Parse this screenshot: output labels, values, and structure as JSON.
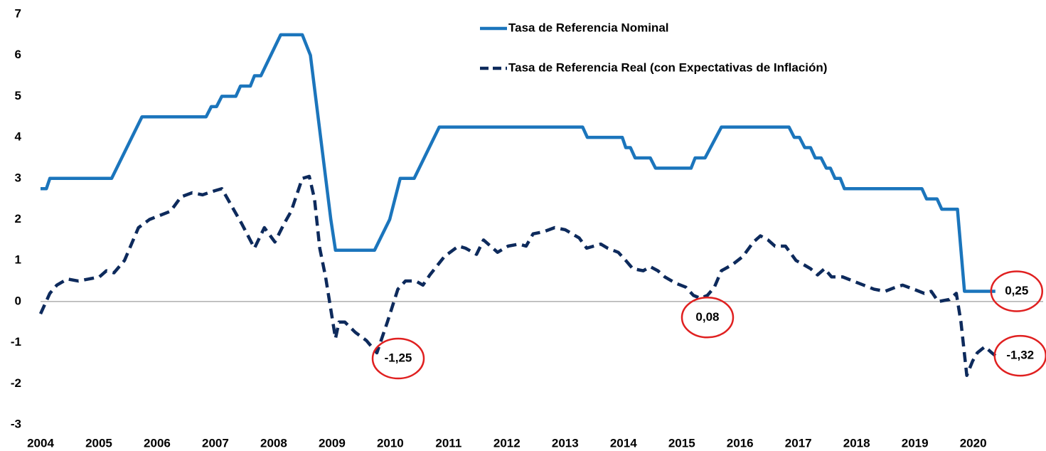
{
  "chart_data": {
    "type": "line",
    "xlim": [
      2004,
      2021.2
    ],
    "xticks": [
      2004,
      2005,
      2006,
      2007,
      2008,
      2009,
      2010,
      2011,
      2012,
      2013,
      2014,
      2015,
      2016,
      2017,
      2018,
      2019,
      2020
    ],
    "ylim": [
      -3,
      7
    ],
    "yticks": [
      -3,
      -2,
      -1,
      0,
      1,
      2,
      3,
      4,
      5,
      6,
      7
    ],
    "grid": false,
    "legend": "top-right",
    "series": [
      {
        "name": "Tasa de Referencia Nominal",
        "color": "#1b75bc",
        "dash": false,
        "x": [
          2004.0,
          2004.1,
          2004.16,
          2005.22,
          2005.74,
          2006.84,
          2006.93,
          2007.02,
          2007.11,
          2007.35,
          2007.43,
          2007.6,
          2007.67,
          2007.78,
          2008.12,
          2008.49,
          2008.63,
          2008.98,
          2009.06,
          2009.73,
          2009.99,
          2010.17,
          2010.41,
          2010.84,
          2013.3,
          2013.38,
          2013.98,
          2014.04,
          2014.12,
          2014.2,
          2014.46,
          2014.55,
          2015.16,
          2015.23,
          2015.4,
          2015.68,
          2016.84,
          2016.93,
          2017.02,
          2017.11,
          2017.21,
          2017.29,
          2017.39,
          2017.48,
          2017.55,
          2017.63,
          2017.72,
          2017.79,
          2019.12,
          2019.2,
          2019.38,
          2019.46,
          2019.73,
          2019.85,
          2020.38
        ],
        "values": [
          2.75,
          2.75,
          3.0,
          3.0,
          4.5,
          4.5,
          4.75,
          4.75,
          5.0,
          5.0,
          5.25,
          5.25,
          5.5,
          5.5,
          6.5,
          6.5,
          6.0,
          2.0,
          1.25,
          1.25,
          2.0,
          3.0,
          3.0,
          4.25,
          4.25,
          4.0,
          4.0,
          3.75,
          3.75,
          3.5,
          3.5,
          3.25,
          3.25,
          3.5,
          3.5,
          4.25,
          4.25,
          4.0,
          4.0,
          3.75,
          3.75,
          3.5,
          3.5,
          3.25,
          3.25,
          3.0,
          3.0,
          2.75,
          2.75,
          2.5,
          2.5,
          2.25,
          2.25,
          0.25,
          0.25
        ]
      },
      {
        "name": "Tasa de Referencia Real (con Expectativas de Inflación)",
        "color": "#0d2a5c",
        "dash": true,
        "x": [
          2004.0,
          2004.16,
          2004.28,
          2004.46,
          2004.65,
          2004.83,
          2005.01,
          2005.13,
          2005.26,
          2005.44,
          2005.68,
          2005.87,
          2006.05,
          2006.23,
          2006.41,
          2006.6,
          2006.78,
          2006.99,
          2007.11,
          2007.21,
          2007.33,
          2007.45,
          2007.67,
          2007.84,
          2008.02,
          2008.18,
          2008.3,
          2008.49,
          2008.61,
          2008.7,
          2008.79,
          2008.89,
          2009.06,
          2009.12,
          2009.22,
          2009.4,
          2009.59,
          2009.77,
          2009.95,
          2010.13,
          2010.26,
          2010.44,
          2010.56,
          2010.68,
          2010.93,
          2011.17,
          2011.29,
          2011.48,
          2011.6,
          2011.72,
          2011.84,
          2012.02,
          2012.21,
          2012.33,
          2012.45,
          2012.63,
          2012.82,
          2013.0,
          2013.24,
          2013.37,
          2013.49,
          2013.61,
          2013.73,
          2013.91,
          2014.04,
          2014.16,
          2014.34,
          2014.46,
          2014.59,
          2014.71,
          2014.89,
          2015.07,
          2015.2,
          2015.32,
          2015.44,
          2015.56,
          2015.68,
          2015.87,
          2016.05,
          2016.23,
          2016.35,
          2016.48,
          2016.6,
          2016.78,
          2016.96,
          2017.09,
          2017.21,
          2017.33,
          2017.45,
          2017.57,
          2017.76,
          2017.94,
          2018.12,
          2018.3,
          2018.49,
          2018.67,
          2018.79,
          2018.98,
          2019.16,
          2019.28,
          2019.4,
          2019.59,
          2019.71,
          2019.79,
          2019.89,
          2019.99,
          2020.07,
          2020.2,
          2020.32,
          2020.38
        ],
        "values": [
          -0.3,
          0.2,
          0.4,
          0.55,
          0.5,
          0.55,
          0.6,
          0.75,
          0.7,
          1.0,
          1.8,
          2.0,
          2.1,
          2.2,
          2.55,
          2.65,
          2.6,
          2.7,
          2.75,
          2.5,
          2.2,
          1.9,
          1.3,
          1.8,
          1.45,
          1.9,
          2.2,
          3.0,
          3.05,
          2.5,
          1.3,
          0.6,
          -0.9,
          -0.5,
          -0.5,
          -0.75,
          -0.95,
          -1.25,
          -0.5,
          0.3,
          0.5,
          0.5,
          0.4,
          0.65,
          1.1,
          1.35,
          1.3,
          1.15,
          1.5,
          1.35,
          1.2,
          1.35,
          1.4,
          1.35,
          1.65,
          1.7,
          1.8,
          1.75,
          1.55,
          1.3,
          1.35,
          1.4,
          1.3,
          1.2,
          1.0,
          0.8,
          0.75,
          0.85,
          0.75,
          0.6,
          0.45,
          0.35,
          0.15,
          0.08,
          0.15,
          0.35,
          0.75,
          0.9,
          1.1,
          1.45,
          1.6,
          1.5,
          1.35,
          1.35,
          1.0,
          0.9,
          0.8,
          0.65,
          0.8,
          0.6,
          0.6,
          0.5,
          0.4,
          0.3,
          0.25,
          0.35,
          0.4,
          0.3,
          0.2,
          0.25,
          0.0,
          0.05,
          0.2,
          -0.5,
          -1.8,
          -1.45,
          -1.25,
          -1.1,
          -1.25,
          -1.32
        ]
      }
    ],
    "annotations": [
      {
        "label": "-1,25",
        "x": 2009.77,
        "y": -1.25
      },
      {
        "label": "0,08",
        "x": 2015.32,
        "y": 0.08
      },
      {
        "label": "0,25",
        "x": 2020.38,
        "y": 0.25
      },
      {
        "label": "-1,32",
        "x": 2020.38,
        "y": -1.32
      }
    ]
  }
}
